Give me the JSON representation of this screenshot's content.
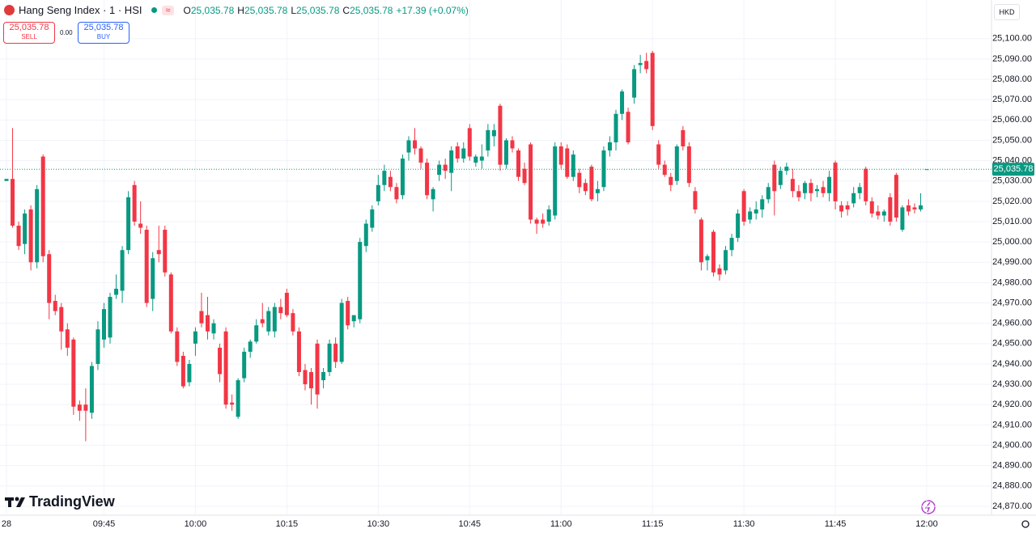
{
  "chart_data": {
    "type": "candlestick",
    "categories": [
      "28",
      null,
      null,
      null,
      null,
      null,
      null,
      null,
      null,
      null,
      null,
      null,
      null,
      null,
      null,
      null,
      "09:45",
      null,
      null,
      null,
      null,
      null,
      null,
      null,
      null,
      null,
      null,
      null,
      null,
      null,
      null,
      "10:00",
      null,
      null,
      null,
      null,
      null,
      null,
      null,
      null,
      null,
      null,
      null,
      null,
      null,
      null,
      "10:15",
      null,
      null,
      null,
      null,
      null,
      null,
      null,
      null,
      null,
      null,
      null,
      null,
      null,
      null,
      "10:30",
      null,
      null,
      null,
      null,
      null,
      null,
      null,
      null,
      null,
      null,
      null,
      null,
      null,
      null,
      "10:45",
      null,
      null,
      null,
      null,
      null,
      null,
      null,
      null,
      null,
      null,
      null,
      null,
      null,
      null,
      "11:00",
      null,
      null,
      null,
      null,
      null,
      null,
      null,
      null,
      null,
      null,
      null,
      null,
      null,
      null,
      "11:15",
      null,
      null,
      null,
      null,
      null,
      null,
      null,
      null,
      null,
      null,
      null,
      null,
      null,
      null,
      "11:30",
      null,
      null,
      null,
      null,
      null,
      null,
      null,
      null,
      null,
      null,
      null,
      null,
      null,
      null,
      "11:45",
      null,
      null,
      null,
      null,
      null,
      null,
      null,
      null,
      null,
      null,
      null,
      null,
      null,
      null,
      "12:00"
    ],
    "open": [
      25030,
      25031,
      25008,
      24999,
      25016,
      24990,
      25042,
      24994,
      24971,
      24968,
      24957,
      24952,
      24920,
      24920,
      24916,
      24940,
      24952,
      24953,
      24974,
      24976,
      24996,
      25028,
      25009,
      25006,
      24972,
      24996,
      25006,
      24984,
      24956,
      24944,
      24931,
      24950,
      24966,
      24964,
      24955,
      24948,
      24956,
      24921,
      24914,
      24933,
      24946,
      24951,
      24962,
      24956,
      24956,
      24968,
      24975,
      24965,
      24956,
      24937,
      24936,
      24950,
      24932,
      24936,
      24950,
      24941,
      24971,
      24961,
      24962,
      24998,
      25007,
      25020,
      25028,
      25032,
      25027,
      25023,
      25044,
      25050,
      25046,
      25039,
      25021,
      25033,
      25038,
      25034,
      25047,
      25041,
      25056,
      25039,
      25040,
      25045,
      25052,
      25067,
      25038,
      25050,
      25045,
      25036,
      25048,
      25011,
      25011,
      25010,
      25013,
      25047,
      25046,
      25032,
      25034,
      25029,
      25037,
      25024,
      25027,
      25045,
      25049,
      25063,
      25064,
      25071,
      25087,
      25089,
      25093,
      25048,
      25038,
      25032,
      25030,
      25055,
      25047,
      25025,
      25011,
      24991,
      25005,
      24987,
      24986,
      24996,
      25002,
      25025,
      25011,
      25014,
      25016,
      25021,
      25038,
      25028,
      25035,
      25031,
      25025,
      25024,
      25029,
      25025,
      25027,
      25024,
      25039,
      25018,
      25018,
      25019,
      25024,
      25036,
      25020,
      25015,
      25013,
      25022,
      25033,
      25006,
      25018,
      25017,
      25016,
      25035.78
    ],
    "high": [
      25031,
      25056,
      25010,
      25016,
      25018,
      25028,
      25043,
      24996,
      24974,
      24970,
      24960,
      24953,
      24922,
      24928,
      24941,
      24961,
      24970,
      24975,
      24984,
      24998,
      25025,
      25030,
      25020,
      25008,
      24995,
      25008,
      25008,
      24985,
      24958,
      24946,
      24942,
      24958,
      24975,
      24973,
      24962,
      24950,
      24958,
      24925,
      24933,
      24948,
      24952,
      24962,
      24970,
      24968,
      24970,
      24972,
      24977,
      24967,
      24958,
      24940,
      24938,
      24952,
      24938,
      24952,
      24953,
      24972,
      24973,
      24964,
      25002,
      25011,
      25018,
      25033,
      25038,
      25035,
      25029,
      25043,
      25052,
      25056,
      25047,
      25041,
      25027,
      25040,
      25041,
      25047,
      25049,
      25049,
      25058,
      25043,
      25048,
      25058,
      25058,
      25068,
      25051,
      25052,
      25046,
      25039,
      25049,
      25012,
      25014,
      25018,
      25049,
      25049,
      25048,
      25045,
      25036,
      25031,
      25038,
      25030,
      25047,
      25052,
      25065,
      25075,
      25066,
      25087,
      25092,
      25093,
      25094,
      25050,
      25040,
      25034,
      25048,
      25057,
      25049,
      25027,
      25012,
      24994,
      25006,
      24989,
      24998,
      25004,
      25016,
      25026,
      25017,
      25020,
      25023,
      25029,
      25040,
      25037,
      25039,
      25036,
      25028,
      25030,
      25031,
      25028,
      25030,
      25035,
      25040,
      25020,
      25020,
      25027,
      25029,
      25037,
      25022,
      25018,
      25016,
      25024,
      25034,
      25018,
      25021,
      25019,
      25024,
      25035.78
    ],
    "low": [
      25030,
      25007,
      24996,
      24994,
      24986,
      24987,
      24990,
      24962,
      24964,
      24947,
      24944,
      24915,
      24912,
      24902,
      24913,
      24937,
      24948,
      24950,
      24972,
      24970,
      24994,
      25008,
      25004,
      24968,
      24966,
      24990,
      24983,
      24955,
      24939,
      24928,
      24929,
      24944,
      24958,
      24952,
      24952,
      24931,
      24918,
      24917,
      24913,
      24931,
      24943,
      24950,
      24958,
      24954,
      24953,
      24962,
      24963,
      24954,
      24934,
      24927,
      24920,
      24918,
      24928,
      24934,
      24938,
      24940,
      24957,
      24958,
      24960,
      24995,
      25005,
      25018,
      25025,
      25025,
      25019,
      25021,
      25040,
      25043,
      25036,
      25021,
      25015,
      25030,
      25031,
      25025,
      25039,
      25039,
      25040,
      25037,
      25036,
      25042,
      25047,
      25035,
      25036,
      25044,
      25030,
      25028,
      25009,
      25004,
      25007,
      25008,
      25011,
      25036,
      25031,
      25030,
      25024,
      25023,
      25020,
      25020,
      25025,
      25042,
      25045,
      25060,
      25048,
      25068,
      25083,
      25083,
      25055,
      25036,
      25032,
      25025,
      25028,
      25045,
      25027,
      25014,
      24986,
      24986,
      24983,
      24981,
      24984,
      24993,
      25000,
      25008,
      25009,
      25011,
      25012,
      25019,
      25013,
      25026,
      25033,
      25022,
      25020,
      25021,
      25020,
      25022,
      25022,
      25020,
      25016,
      25012,
      25013,
      25017,
      25021,
      25018,
      25012,
      25011,
      25010,
      25008,
      25010,
      25005,
      25013,
      25014,
      25015,
      25035.78
    ],
    "close": [
      25031,
      25008,
      24998,
      25014,
      24990,
      25026,
      24993,
      24970,
      24966,
      24956,
      24948,
      24919,
      24917,
      24917,
      24939,
      24957,
      24967,
      24973,
      24977,
      24996,
      25022,
      25010,
      25007,
      24970,
      24992,
      24994,
      24985,
      24956,
      24941,
      24929,
      24940,
      24956,
      24960,
      24956,
      24960,
      24935,
      24920,
      24920,
      24932,
      24946,
      24951,
      24959,
      24960,
      24966,
      24968,
      24965,
      24964,
      24956,
      24936,
      24930,
      24928,
      24925,
      24936,
      24950,
      24941,
      24970,
      24959,
      24964,
      25000,
      25009,
      25016,
      25028,
      25035,
      25027,
      25021,
      25041,
      25050,
      25046,
      25039,
      25023,
      25026,
      25038,
      25035,
      25045,
      25041,
      25046,
      25042,
      25042,
      25042,
      25055,
      25055,
      25038,
      25050,
      25046,
      25032,
      25029,
      25011,
      25009,
      25009,
      25016,
      25047,
      25038,
      25032,
      25043,
      25027,
      25025,
      25021,
      25026,
      25045,
      25049,
      25063,
      25074,
      25049,
      25085,
      25088,
      25085,
      25057,
      25038,
      25033,
      25028,
      25047,
      25047,
      25029,
      25016,
      24990,
      24993,
      24985,
      24984,
      24996,
      25002,
      25014,
      25010,
      25015,
      25016,
      25021,
      25027,
      25025,
      25035,
      25037,
      25025,
      25022,
      25029,
      25024,
      25026,
      25024,
      25032,
      25020,
      25015,
      25016,
      25024,
      25027,
      25020,
      25014,
      25013,
      25015,
      25010,
      25012,
      25017,
      25015,
      25016,
      25018,
      25035.78
    ],
    "up_color": "#089981",
    "down_color": "#f23645",
    "ylim": [
      24866,
      25119
    ],
    "yticks": [
      {
        "value": 25100,
        "label": "25,100.00"
      },
      {
        "value": 25090,
        "label": "25,090.00"
      },
      {
        "value": 25080,
        "label": "25,080.00"
      },
      {
        "value": 25070,
        "label": "25,070.00"
      },
      {
        "value": 25060,
        "label": "25,060.00"
      },
      {
        "value": 25050,
        "label": "25,050.00"
      },
      {
        "value": 25040,
        "label": "25,040.00"
      },
      {
        "value": 25030,
        "label": "25,030.00"
      },
      {
        "value": 25020,
        "label": "25,020.00"
      },
      {
        "value": 25010,
        "label": "25,010.00"
      },
      {
        "value": 25000,
        "label": "25,000.00"
      },
      {
        "value": 24990,
        "label": "24,990.00"
      },
      {
        "value": 24980,
        "label": "24,980.00"
      },
      {
        "value": 24970,
        "label": "24,970.00"
      },
      {
        "value": 24960,
        "label": "24,960.00"
      },
      {
        "value": 24950,
        "label": "24,950.00"
      },
      {
        "value": 24940,
        "label": "24,940.00"
      },
      {
        "value": 24930,
        "label": "24,930.00"
      },
      {
        "value": 24920,
        "label": "24,920.00"
      },
      {
        "value": 24910,
        "label": "24,910.00"
      },
      {
        "value": 24900,
        "label": "24,900.00"
      },
      {
        "value": 24890,
        "label": "24,890.00"
      },
      {
        "value": 24880,
        "label": "24,880.00"
      },
      {
        "value": 24870,
        "label": "24,870.00"
      }
    ],
    "grid": true,
    "last_price": {
      "value": 25035.78,
      "label": "25,035.78"
    }
  },
  "header": {
    "symbol": "Hang Seng Index · 1 · HSI",
    "ohlc": [
      {
        "label": "O",
        "value": "25,035.78"
      },
      {
        "label": "H",
        "value": "25,035.78"
      },
      {
        "label": "L",
        "value": "25,035.78"
      },
      {
        "label": "C",
        "value": "25,035.78"
      }
    ],
    "change": "+17.39 (+0.07%)",
    "sell": {
      "price": "25,035.78",
      "label": "SELL"
    },
    "spread": "0.00",
    "buy": {
      "price": "25,035.78",
      "label": "BUY"
    },
    "currency": "HKD",
    "brand": "TradingView"
  }
}
